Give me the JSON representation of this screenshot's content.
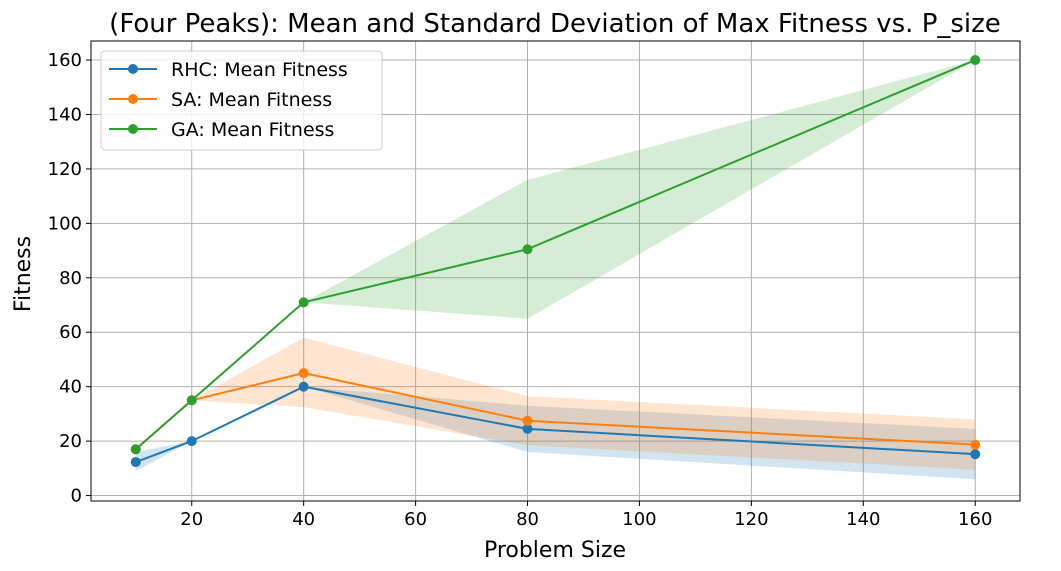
{
  "chart_data": {
    "type": "line",
    "title": "(Four Peaks): Mean and Standard Deviation of Max Fitness vs. P_size",
    "xlabel": "Problem Size",
    "ylabel": "Fitness",
    "xlim": [
      2,
      168
    ],
    "ylim": [
      -2,
      167
    ],
    "xticks": [
      20,
      40,
      60,
      80,
      100,
      120,
      140,
      160
    ],
    "yticks": [
      0,
      20,
      40,
      60,
      80,
      100,
      120,
      140,
      160
    ],
    "grid": true,
    "legend_position": "upper left",
    "x": [
      10,
      20,
      40,
      80,
      160
    ],
    "series": [
      {
        "name": "RHC: Mean Fitness",
        "color": "#1f77b4",
        "values": [
          12.3,
          20,
          40,
          24.5,
          15.2
        ],
        "lower": [
          9,
          20,
          40,
          16,
          6
        ],
        "upper": [
          16,
          20,
          40,
          33,
          24.5
        ]
      },
      {
        "name": "SA: Mean Fitness",
        "color": "#ff7f0e",
        "values": [
          17,
          35,
          45,
          27.5,
          18.7
        ],
        "lower": [
          17,
          35,
          32.5,
          18.5,
          9.5
        ],
        "upper": [
          17,
          35,
          58,
          36.5,
          28
        ]
      },
      {
        "name": "GA: Mean Fitness",
        "color": "#2ca02c",
        "values": [
          17,
          35,
          71,
          90.5,
          160
        ],
        "lower": [
          17,
          35,
          71,
          65,
          160
        ],
        "upper": [
          17,
          35,
          71,
          116,
          160
        ]
      }
    ]
  }
}
